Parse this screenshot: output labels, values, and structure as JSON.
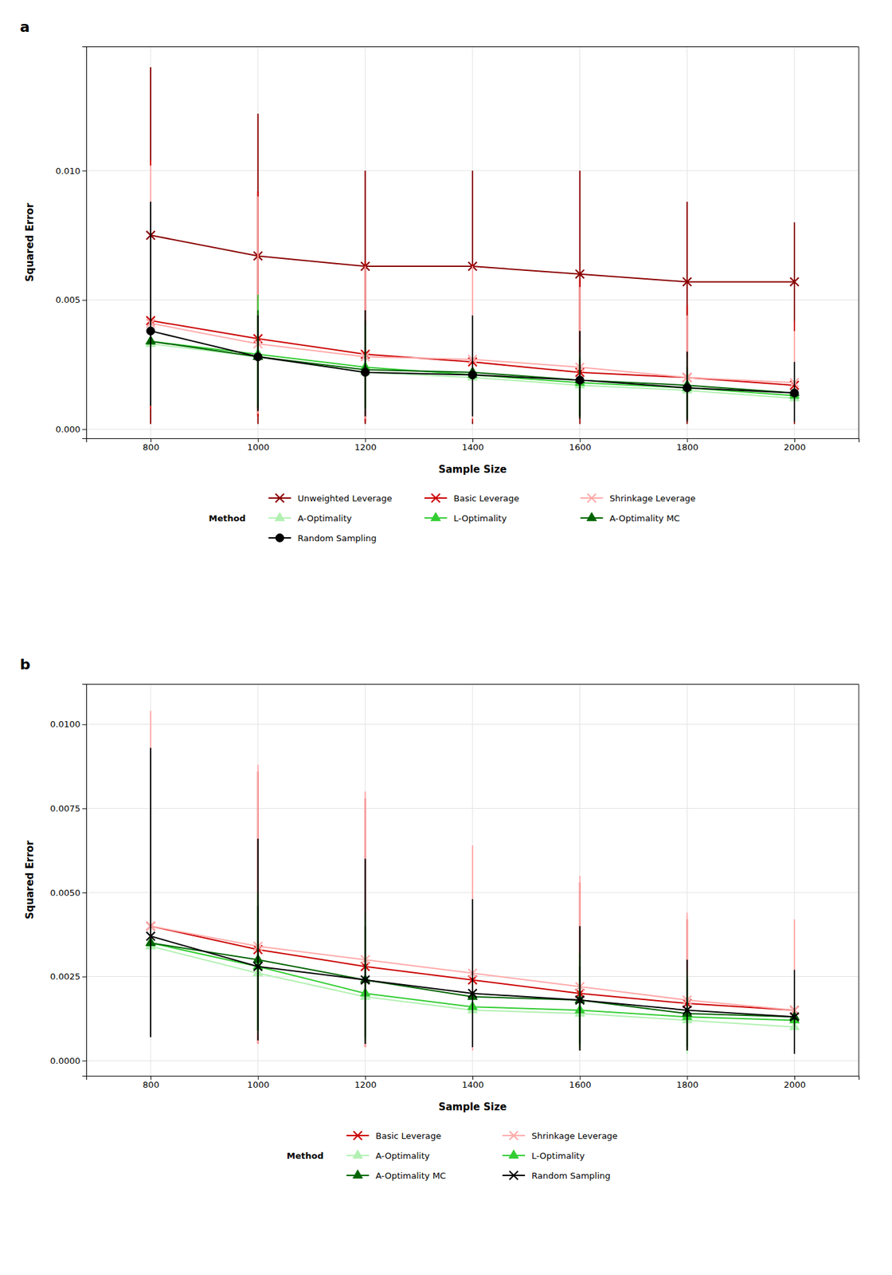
{
  "chart_data": [
    {
      "type": "line",
      "title": "a",
      "xlabel": "Sample Size",
      "ylabel": "Squared Error",
      "x": [
        800,
        1000,
        1200,
        1400,
        1600,
        1800,
        2000
      ],
      "xlim": [
        680,
        2120
      ],
      "xticks": [
        800,
        1000,
        1200,
        1400,
        1600,
        1800,
        2000
      ],
      "ylim": [
        -0.00035,
        0.0148
      ],
      "yticks": [
        {
          "value": 0,
          "label": "0.000"
        },
        0.005,
        {
          "value": 0.01,
          "label": "0.010"
        }
      ],
      "grid": true,
      "legend": "bottom",
      "legend_title": "Method",
      "series": [
        {
          "name": "Unweighted Leverage",
          "color": "#8B0000",
          "marker": "x",
          "values": [
            0.0075,
            0.0067,
            0.0063,
            0.0063,
            0.006,
            0.0057,
            0.0057
          ],
          "lower": [
            0.0002,
            0.0002,
            0.0002,
            0.0002,
            0.0002,
            0.0002,
            0.0002
          ],
          "upper": [
            0.014,
            0.0122,
            0.01,
            0.01,
            0.01,
            0.0088,
            0.008
          ]
        },
        {
          "name": "Basic Leverage",
          "color": "#cc0000",
          "marker": "x",
          "values": [
            0.0042,
            0.0035,
            0.0029,
            0.0026,
            0.0022,
            0.002,
            0.0017
          ],
          "lower": [
            0.0008,
            0.0005,
            0.0003,
            0.0003,
            0.0004,
            0.0003,
            0.0003
          ],
          "upper": [
            0.0104,
            0.0092,
            0.0065,
            0.0064,
            0.0058,
            0.0048,
            0.0042
          ]
        },
        {
          "name": "Shrinkage Leverage",
          "color": "#ffaaaa",
          "marker": "x",
          "values": [
            0.0041,
            0.0033,
            0.0028,
            0.0027,
            0.0024,
            0.002,
            0.0018
          ],
          "lower": [
            0.0009,
            0.0006,
            0.0004,
            0.0004,
            0.0004,
            0.0003,
            0.0004
          ],
          "upper": [
            0.0102,
            0.009,
            0.0063,
            0.0063,
            0.0055,
            0.0044,
            0.0038
          ]
        },
        {
          "name": "A-Optimality",
          "color": "#b2f0b2",
          "marker": "triangle",
          "values": [
            0.0033,
            0.0028,
            0.0022,
            0.002,
            0.0017,
            0.0015,
            0.0012
          ],
          "lower": [
            0.001,
            0.001,
            0.0007,
            0.0006,
            0.0004,
            0.0004,
            0.0003
          ],
          "upper": [
            0.0082,
            0.005,
            0.004,
            0.0035,
            0.003,
            0.0028,
            0.0025
          ]
        },
        {
          "name": "L-Optimality",
          "color": "#32CD32",
          "marker": "triangle",
          "values": [
            0.0034,
            0.0029,
            0.0024,
            0.0021,
            0.0018,
            0.0016,
            0.0013
          ],
          "lower": [
            0.001,
            0.0008,
            0.0008,
            0.0006,
            0.0005,
            0.0004,
            0.0003
          ],
          "upper": [
            0.0072,
            0.0052,
            0.004,
            0.003,
            0.0028,
            0.0022,
            0.002
          ]
        },
        {
          "name": "A-Optimality MC",
          "color": "#006400",
          "marker": "triangle",
          "values": [
            0.0034,
            0.0028,
            0.0023,
            0.0022,
            0.0019,
            0.0017,
            0.0014
          ],
          "lower": [
            0.001,
            0.0008,
            0.0008,
            0.0005,
            0.0005,
            0.0004,
            0.0003
          ],
          "upper": [
            0.006,
            0.0046,
            0.0042,
            0.0032,
            0.0027,
            0.0024,
            0.0022
          ]
        },
        {
          "name": "Random Sampling",
          "color": "#000000",
          "marker": "circle",
          "values": [
            0.0038,
            0.0028,
            0.0022,
            0.0021,
            0.0019,
            0.0016,
            0.0014
          ],
          "lower": [
            0.0009,
            0.0007,
            0.0005,
            0.0005,
            0.0004,
            0.0003,
            0.0003
          ],
          "upper": [
            0.0088,
            0.0044,
            0.0046,
            0.0044,
            0.0038,
            0.003,
            0.0026
          ]
        }
      ]
    },
    {
      "type": "line",
      "title": "b",
      "xlabel": "Sample Size",
      "ylabel": "Squared Error",
      "x": [
        800,
        1000,
        1200,
        1400,
        1600,
        1800,
        2000
      ],
      "xlim": [
        680,
        2120
      ],
      "xticks": [
        800,
        1000,
        1200,
        1400,
        1600,
        1800,
        2000
      ],
      "ylim": [
        -0.00045,
        0.0112
      ],
      "yticks": [
        {
          "value": 0,
          "label": "0.0000"
        },
        0.0025,
        {
          "value": 0.005,
          "label": "0.0050"
        },
        0.0075,
        {
          "value": 0.01,
          "label": "0.0100"
        }
      ],
      "grid": true,
      "legend": "bottom",
      "legend_title": "Method",
      "series": [
        {
          "name": "Basic Leverage",
          "color": "#cc0000",
          "marker": "x",
          "values": [
            0.004,
            0.0033,
            0.0028,
            0.0024,
            0.002,
            0.0017,
            0.0015
          ],
          "lower": [
            0.0007,
            0.0005,
            0.0004,
            0.0003,
            0.0003,
            0.0003,
            0.0003
          ],
          "upper": [
            0.0102,
            0.0086,
            0.0078,
            0.0062,
            0.0053,
            0.0042,
            0.004
          ]
        },
        {
          "name": "Shrinkage Leverage",
          "color": "#ffaaaa",
          "marker": "x",
          "values": [
            0.004,
            0.0034,
            0.003,
            0.0026,
            0.0022,
            0.0018,
            0.0015
          ],
          "lower": [
            0.0007,
            0.0005,
            0.0004,
            0.0003,
            0.0003,
            0.0003,
            0.0003
          ],
          "upper": [
            0.0104,
            0.0088,
            0.008,
            0.0064,
            0.0055,
            0.0044,
            0.0042
          ]
        },
        {
          "name": "A-Optimality",
          "color": "#b2f0b2",
          "marker": "triangle",
          "values": [
            0.0034,
            0.0026,
            0.0019,
            0.0015,
            0.0014,
            0.0012,
            0.001
          ],
          "lower": [
            0.001,
            0.0008,
            0.0005,
            0.0004,
            0.0003,
            0.0002,
            0.0002
          ],
          "upper": [
            0.0068,
            0.005,
            0.0042,
            0.0034,
            0.003,
            0.0027,
            0.0022
          ]
        },
        {
          "name": "L-Optimality",
          "color": "#32CD32",
          "marker": "triangle",
          "values": [
            0.0035,
            0.0028,
            0.002,
            0.0016,
            0.0015,
            0.0013,
            0.0012
          ],
          "lower": [
            0.001,
            0.0009,
            0.0006,
            0.0005,
            0.0004,
            0.0003,
            0.0003
          ],
          "upper": [
            0.007,
            0.005,
            0.0044,
            0.0036,
            0.0032,
            0.0025,
            0.0022
          ]
        },
        {
          "name": "A-Optimality MC",
          "color": "#006400",
          "marker": "triangle",
          "values": [
            0.0035,
            0.003,
            0.0024,
            0.0019,
            0.0018,
            0.0014,
            0.0013
          ],
          "lower": [
            0.001,
            0.0009,
            0.0007,
            0.0006,
            0.0005,
            0.0004,
            0.0003
          ],
          "upper": [
            0.006,
            0.0046,
            0.004,
            0.0032,
            0.0028,
            0.0024,
            0.002
          ]
        },
        {
          "name": "Random Sampling",
          "color": "#000000",
          "marker": "x",
          "values": [
            0.0037,
            0.0028,
            0.0024,
            0.002,
            0.0018,
            0.0015,
            0.0013
          ],
          "lower": [
            0.0007,
            0.0006,
            0.0005,
            0.0004,
            0.0003,
            0.0003,
            0.0002
          ],
          "upper": [
            0.0093,
            0.0066,
            0.006,
            0.0048,
            0.004,
            0.003,
            0.0027
          ]
        }
      ]
    }
  ]
}
